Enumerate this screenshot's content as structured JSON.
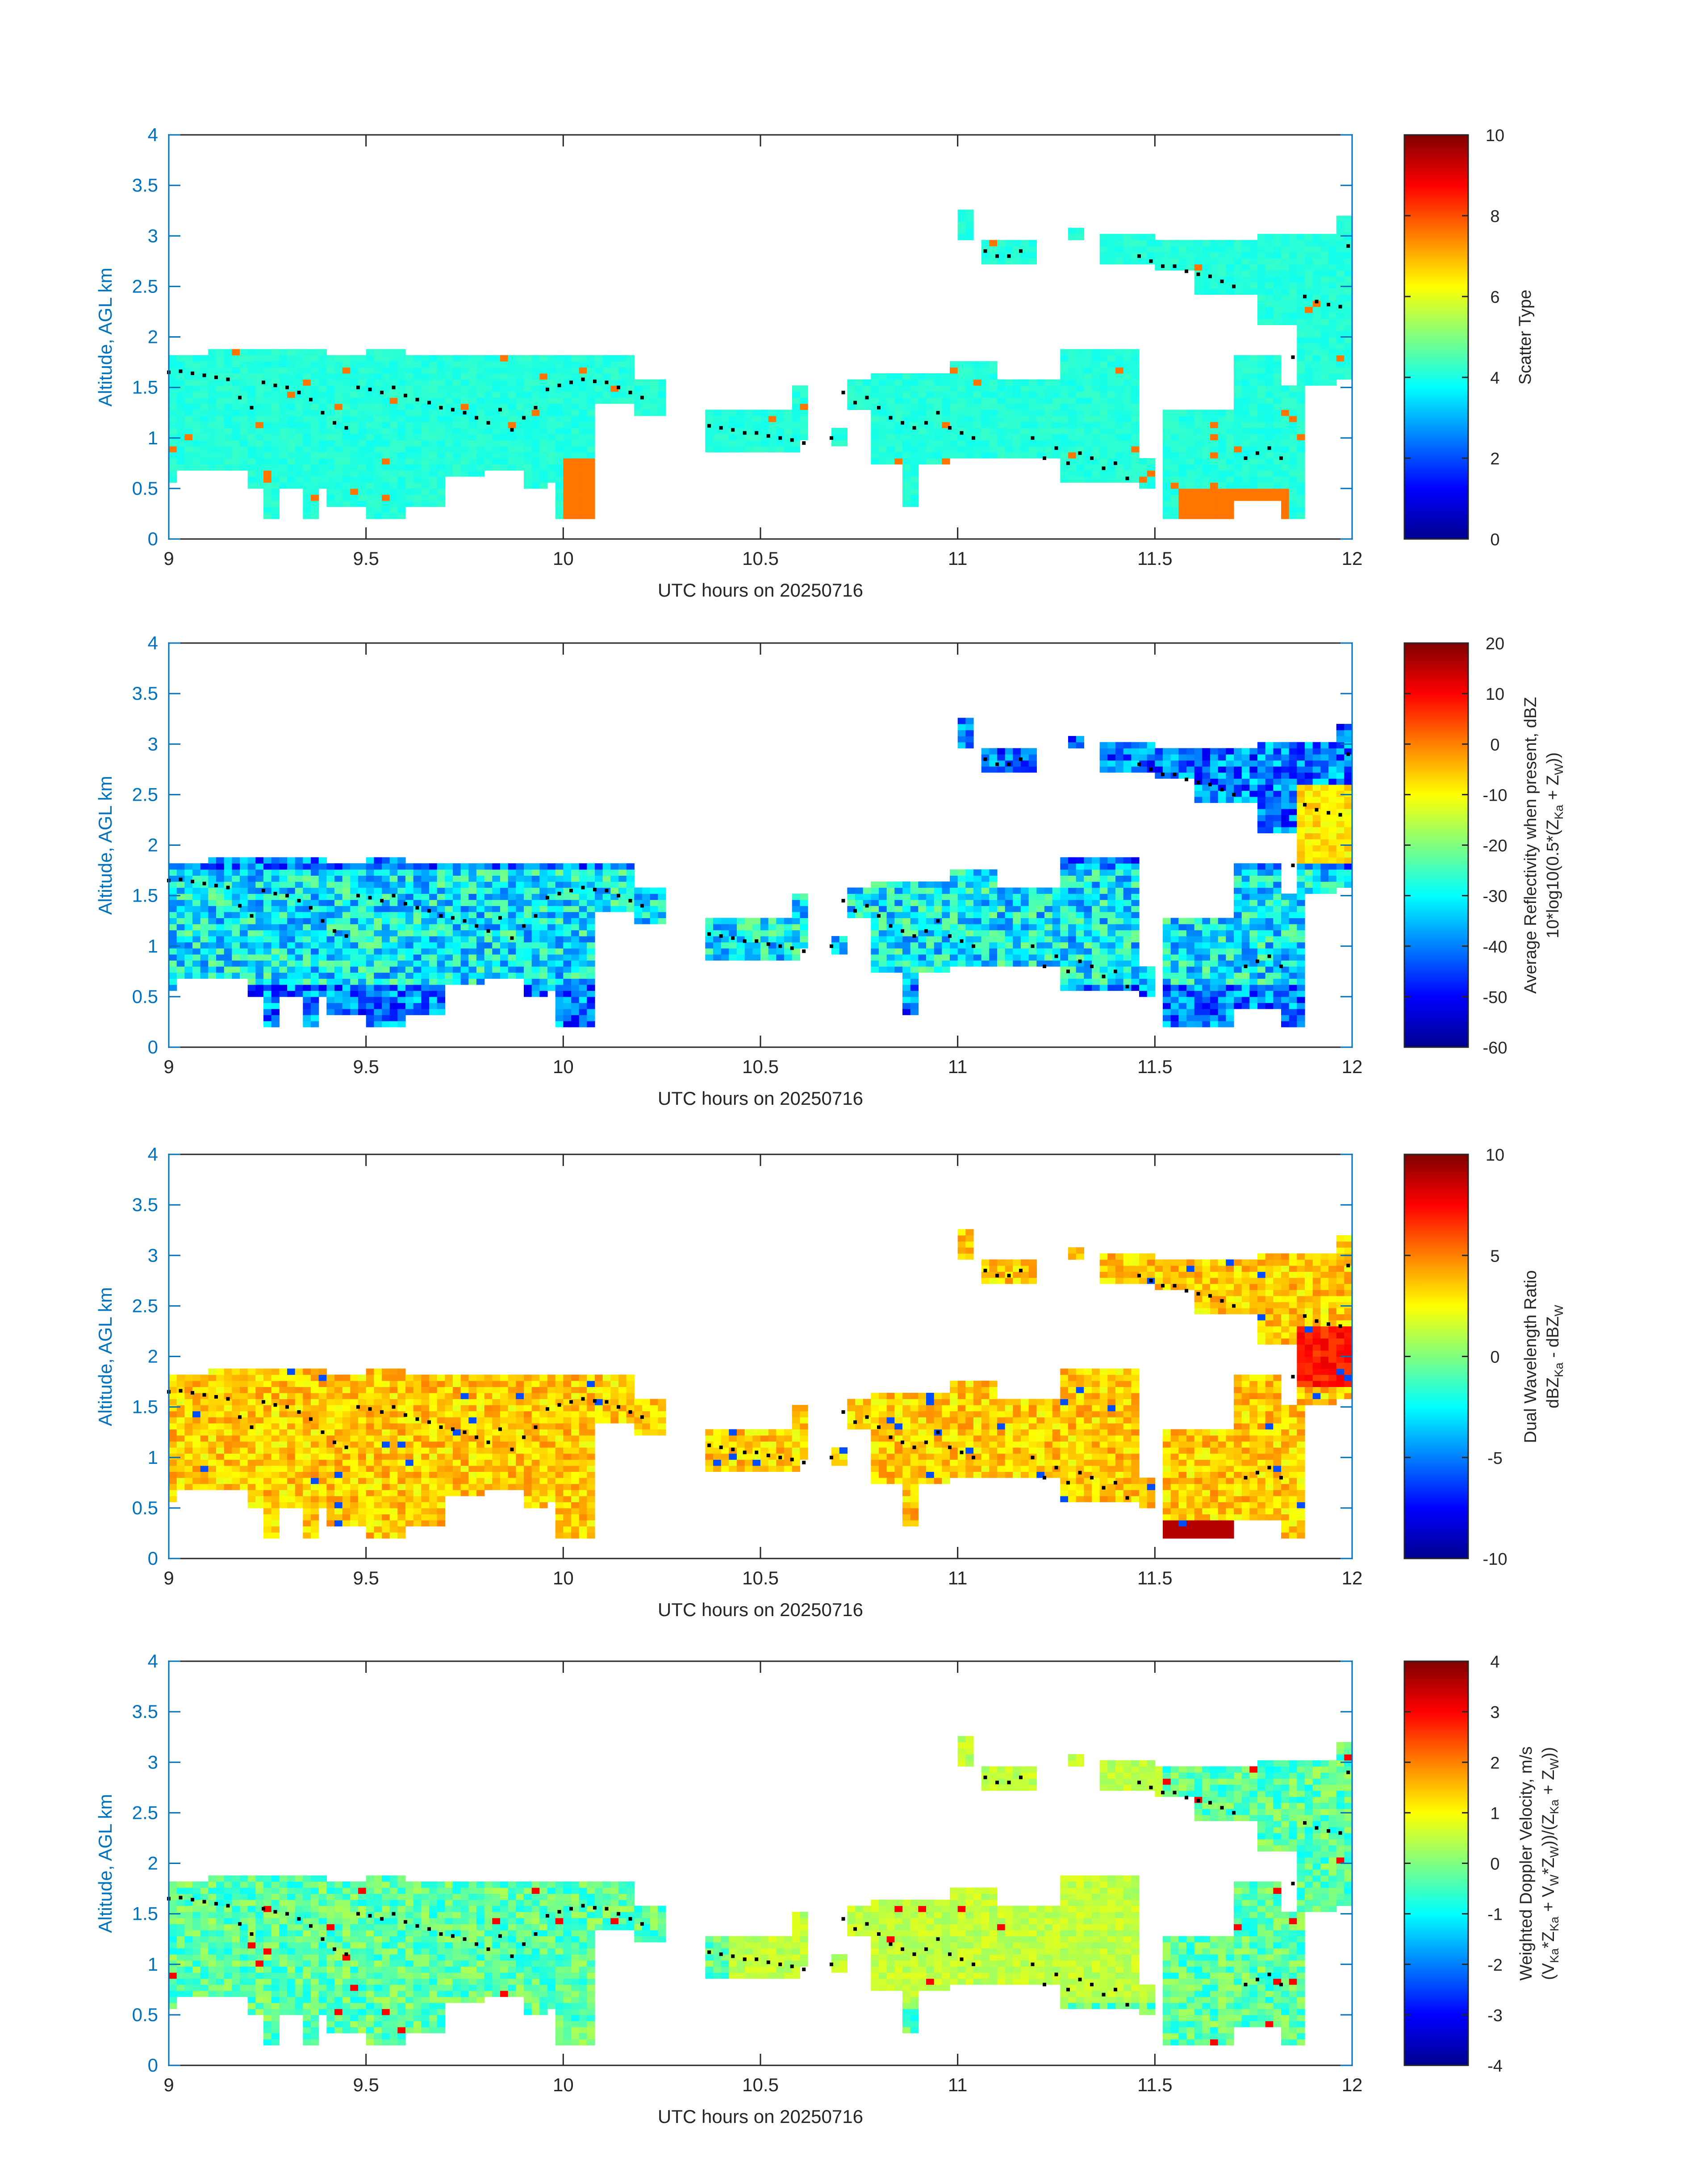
{
  "figure": {
    "date": "20250716"
  },
  "chart_data": [
    {
      "type": "heatmap",
      "title": "",
      "xlabel": "UTC hours on 20250716",
      "ylabel": "Altitude, AGL km",
      "xlim": [
        9,
        12
      ],
      "ylim": [
        0,
        4
      ],
      "xticks": [
        "9",
        "9.5",
        "10",
        "10.5",
        "11",
        "11.5",
        "12"
      ],
      "yticks": [
        "0",
        "0.5",
        "1",
        "1.5",
        "2",
        "2.5",
        "3",
        "3.5",
        "4"
      ],
      "colorbar": {
        "label_lines": [
          "Scatter Type"
        ],
        "range": [
          0,
          10
        ],
        "ticks": [
          "0",
          "2",
          "4",
          "6",
          "8",
          "10"
        ]
      },
      "description": "Dominant scatter type ~4 (cyan) across cloud; isolated orange (~7.5) columns near 10.0 h and 11.6-11.8 h near surface"
    },
    {
      "type": "heatmap",
      "title": "",
      "xlabel": "UTC hours on 20250716",
      "ylabel": "Altitude, AGL km",
      "xlim": [
        9,
        12
      ],
      "ylim": [
        0,
        4
      ],
      "xticks": [
        "9",
        "9.5",
        "10",
        "10.5",
        "11",
        "11.5",
        "12"
      ],
      "yticks": [
        "0",
        "0.5",
        "1",
        "1.5",
        "2",
        "2.5",
        "3",
        "3.5",
        "4"
      ],
      "colorbar": {
        "label_lines": [
          "Average Reflectivity when present, dBZ",
          "10*log10(0.5*(Z",
          "Ka",
          " + Z",
          "W",
          "))"
        ],
        "range": [
          -60,
          20
        ],
        "ticks": [
          "-60",
          "-50",
          "-40",
          "-30",
          "-20",
          "-10",
          "0",
          "10",
          "20"
        ]
      },
      "description": "Reflectivity -50 to -20 dBZ in low cloud; up to ~-5 dBZ near 11.9-12 h at 2 km"
    },
    {
      "type": "heatmap",
      "title": "",
      "xlabel": "UTC hours on 20250716",
      "ylabel": "Altitude, AGL km",
      "xlim": [
        9,
        12
      ],
      "ylim": [
        0,
        4
      ],
      "xticks": [
        "9",
        "9.5",
        "10",
        "10.5",
        "11",
        "11.5",
        "12"
      ],
      "yticks": [
        "0",
        "0.5",
        "1",
        "1.5",
        "2",
        "2.5",
        "3",
        "3.5",
        "4"
      ],
      "colorbar": {
        "label_lines": [
          "Dual Wavelength Ratio",
          "dBZ",
          "Ka",
          " - dBZ",
          "W"
        ],
        "range": [
          -10,
          10
        ],
        "ticks": [
          "-10",
          "-5",
          "0",
          "5",
          "10"
        ]
      },
      "description": "DWR mostly 2-5 dB; up to ~8 dB near 12 h at 2 km and near-surface at 11.6 h"
    },
    {
      "type": "heatmap",
      "title": "",
      "xlabel": "UTC hours on 20250716",
      "ylabel": "Altitude, AGL km",
      "xlim": [
        9,
        12
      ],
      "ylim": [
        0,
        4
      ],
      "xticks": [
        "9",
        "9.5",
        "10",
        "10.5",
        "11",
        "11.5",
        "12"
      ],
      "yticks": [
        "0",
        "0.5",
        "1",
        "1.5",
        "2",
        "2.5",
        "3",
        "3.5",
        "4"
      ],
      "colorbar": {
        "label_lines": [
          "Weighted Doppler Velocity, m/s",
          "(V",
          "Ka",
          "*Z",
          "Ka",
          " + V",
          "W",
          "*Z",
          "W",
          "))/(Z",
          "Ka",
          " + Z",
          "W",
          "))"
        ],
        "range": [
          -4,
          4
        ],
        "ticks": [
          "-4",
          "-3",
          "-2",
          "-1",
          "0",
          "1",
          "2",
          "3",
          "4"
        ]
      },
      "description": "Doppler velocity mostly -1 to 0.5 m/s; yellow (~0.5) in 10.4-11.5 h cells"
    }
  ],
  "cloud_top_markers": [
    [
      9.0,
      1.65
    ],
    [
      9.03,
      1.66
    ],
    [
      9.06,
      1.64
    ],
    [
      9.09,
      1.62
    ],
    [
      9.12,
      1.6
    ],
    [
      9.15,
      1.58
    ],
    [
      9.18,
      1.4
    ],
    [
      9.21,
      1.3
    ],
    [
      9.24,
      1.55
    ],
    [
      9.27,
      1.52
    ],
    [
      9.3,
      1.5
    ],
    [
      9.33,
      1.45
    ],
    [
      9.36,
      1.38
    ],
    [
      9.39,
      1.25
    ],
    [
      9.42,
      1.15
    ],
    [
      9.45,
      1.1
    ],
    [
      9.48,
      1.5
    ],
    [
      9.51,
      1.48
    ],
    [
      9.54,
      1.45
    ],
    [
      9.57,
      1.5
    ],
    [
      9.6,
      1.42
    ],
    [
      9.63,
      1.38
    ],
    [
      9.66,
      1.35
    ],
    [
      9.69,
      1.3
    ],
    [
      9.72,
      1.28
    ],
    [
      9.75,
      1.25
    ],
    [
      9.78,
      1.2
    ],
    [
      9.81,
      1.15
    ],
    [
      9.84,
      1.28
    ],
    [
      9.87,
      1.08
    ],
    [
      9.9,
      1.2
    ],
    [
      9.93,
      1.3
    ],
    [
      9.96,
      1.48
    ],
    [
      9.99,
      1.52
    ],
    [
      10.02,
      1.55
    ],
    [
      10.05,
      1.58
    ],
    [
      10.08,
      1.56
    ],
    [
      10.11,
      1.55
    ],
    [
      10.14,
      1.5
    ],
    [
      10.17,
      1.45
    ],
    [
      10.2,
      1.4
    ],
    [
      10.37,
      1.12
    ],
    [
      10.4,
      1.1
    ],
    [
      10.43,
      1.08
    ],
    [
      10.46,
      1.05
    ],
    [
      10.49,
      1.05
    ],
    [
      10.52,
      1.02
    ],
    [
      10.55,
      1.0
    ],
    [
      10.58,
      0.98
    ],
    [
      10.61,
      0.95
    ],
    [
      10.68,
      1.0
    ],
    [
      10.71,
      1.45
    ],
    [
      10.74,
      1.35
    ],
    [
      10.77,
      1.4
    ],
    [
      10.8,
      1.3
    ],
    [
      10.83,
      1.2
    ],
    [
      10.86,
      1.15
    ],
    [
      10.89,
      1.1
    ],
    [
      10.92,
      1.15
    ],
    [
      10.95,
      1.25
    ],
    [
      10.98,
      1.1
    ],
    [
      11.01,
      1.05
    ],
    [
      11.04,
      1.0
    ],
    [
      11.07,
      2.85
    ],
    [
      11.1,
      2.8
    ],
    [
      11.13,
      2.8
    ],
    [
      11.16,
      2.85
    ],
    [
      11.19,
      1.0
    ],
    [
      11.22,
      0.8
    ],
    [
      11.25,
      0.9
    ],
    [
      11.28,
      0.75
    ],
    [
      11.31,
      0.85
    ],
    [
      11.34,
      0.8
    ],
    [
      11.37,
      0.7
    ],
    [
      11.4,
      0.75
    ],
    [
      11.43,
      0.6
    ],
    [
      11.46,
      2.8
    ],
    [
      11.49,
      2.75
    ],
    [
      11.52,
      2.7
    ],
    [
      11.55,
      2.7
    ],
    [
      11.58,
      2.65
    ],
    [
      11.61,
      2.62
    ],
    [
      11.64,
      2.6
    ],
    [
      11.67,
      2.55
    ],
    [
      11.7,
      2.5
    ],
    [
      11.73,
      0.8
    ],
    [
      11.76,
      0.85
    ],
    [
      11.79,
      0.9
    ],
    [
      11.82,
      0.8
    ],
    [
      11.85,
      1.8
    ],
    [
      11.88,
      2.4
    ],
    [
      11.91,
      2.35
    ],
    [
      11.94,
      2.32
    ],
    [
      11.97,
      2.3
    ],
    [
      11.99,
      2.9
    ]
  ]
}
